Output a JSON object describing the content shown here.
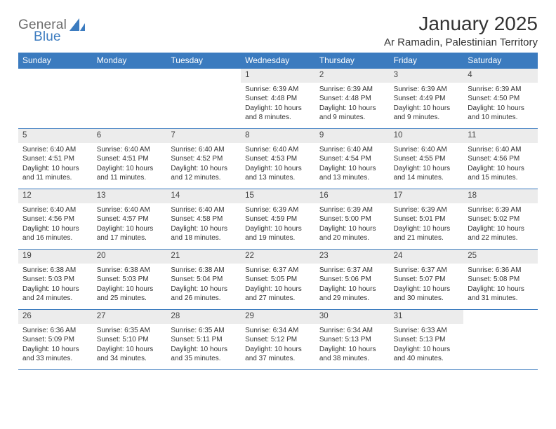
{
  "logo": {
    "top": "General",
    "bottom": "Blue",
    "shape_color": "#3b7bbf"
  },
  "title": "January 2025",
  "location": "Ar Ramadin, Palestinian Territory",
  "colors": {
    "header_bg": "#3b7bbf",
    "header_text": "#ffffff",
    "daynum_bg": "#ececec",
    "border": "#3b7bbf",
    "body_text": "#333333",
    "logo_gray": "#6b6b6b"
  },
  "daynames": [
    "Sunday",
    "Monday",
    "Tuesday",
    "Wednesday",
    "Thursday",
    "Friday",
    "Saturday"
  ],
  "weeks": [
    [
      null,
      null,
      null,
      {
        "n": "1",
        "sunrise": "6:39 AM",
        "sunset": "4:48 PM",
        "daylight": "10 hours and 8 minutes."
      },
      {
        "n": "2",
        "sunrise": "6:39 AM",
        "sunset": "4:48 PM",
        "daylight": "10 hours and 9 minutes."
      },
      {
        "n": "3",
        "sunrise": "6:39 AM",
        "sunset": "4:49 PM",
        "daylight": "10 hours and 9 minutes."
      },
      {
        "n": "4",
        "sunrise": "6:39 AM",
        "sunset": "4:50 PM",
        "daylight": "10 hours and 10 minutes."
      }
    ],
    [
      {
        "n": "5",
        "sunrise": "6:40 AM",
        "sunset": "4:51 PM",
        "daylight": "10 hours and 11 minutes."
      },
      {
        "n": "6",
        "sunrise": "6:40 AM",
        "sunset": "4:51 PM",
        "daylight": "10 hours and 11 minutes."
      },
      {
        "n": "7",
        "sunrise": "6:40 AM",
        "sunset": "4:52 PM",
        "daylight": "10 hours and 12 minutes."
      },
      {
        "n": "8",
        "sunrise": "6:40 AM",
        "sunset": "4:53 PM",
        "daylight": "10 hours and 13 minutes."
      },
      {
        "n": "9",
        "sunrise": "6:40 AM",
        "sunset": "4:54 PM",
        "daylight": "10 hours and 13 minutes."
      },
      {
        "n": "10",
        "sunrise": "6:40 AM",
        "sunset": "4:55 PM",
        "daylight": "10 hours and 14 minutes."
      },
      {
        "n": "11",
        "sunrise": "6:40 AM",
        "sunset": "4:56 PM",
        "daylight": "10 hours and 15 minutes."
      }
    ],
    [
      {
        "n": "12",
        "sunrise": "6:40 AM",
        "sunset": "4:56 PM",
        "daylight": "10 hours and 16 minutes."
      },
      {
        "n": "13",
        "sunrise": "6:40 AM",
        "sunset": "4:57 PM",
        "daylight": "10 hours and 17 minutes."
      },
      {
        "n": "14",
        "sunrise": "6:40 AM",
        "sunset": "4:58 PM",
        "daylight": "10 hours and 18 minutes."
      },
      {
        "n": "15",
        "sunrise": "6:39 AM",
        "sunset": "4:59 PM",
        "daylight": "10 hours and 19 minutes."
      },
      {
        "n": "16",
        "sunrise": "6:39 AM",
        "sunset": "5:00 PM",
        "daylight": "10 hours and 20 minutes."
      },
      {
        "n": "17",
        "sunrise": "6:39 AM",
        "sunset": "5:01 PM",
        "daylight": "10 hours and 21 minutes."
      },
      {
        "n": "18",
        "sunrise": "6:39 AM",
        "sunset": "5:02 PM",
        "daylight": "10 hours and 22 minutes."
      }
    ],
    [
      {
        "n": "19",
        "sunrise": "6:38 AM",
        "sunset": "5:03 PM",
        "daylight": "10 hours and 24 minutes."
      },
      {
        "n": "20",
        "sunrise": "6:38 AM",
        "sunset": "5:03 PM",
        "daylight": "10 hours and 25 minutes."
      },
      {
        "n": "21",
        "sunrise": "6:38 AM",
        "sunset": "5:04 PM",
        "daylight": "10 hours and 26 minutes."
      },
      {
        "n": "22",
        "sunrise": "6:37 AM",
        "sunset": "5:05 PM",
        "daylight": "10 hours and 27 minutes."
      },
      {
        "n": "23",
        "sunrise": "6:37 AM",
        "sunset": "5:06 PM",
        "daylight": "10 hours and 29 minutes."
      },
      {
        "n": "24",
        "sunrise": "6:37 AM",
        "sunset": "5:07 PM",
        "daylight": "10 hours and 30 minutes."
      },
      {
        "n": "25",
        "sunrise": "6:36 AM",
        "sunset": "5:08 PM",
        "daylight": "10 hours and 31 minutes."
      }
    ],
    [
      {
        "n": "26",
        "sunrise": "6:36 AM",
        "sunset": "5:09 PM",
        "daylight": "10 hours and 33 minutes."
      },
      {
        "n": "27",
        "sunrise": "6:35 AM",
        "sunset": "5:10 PM",
        "daylight": "10 hours and 34 minutes."
      },
      {
        "n": "28",
        "sunrise": "6:35 AM",
        "sunset": "5:11 PM",
        "daylight": "10 hours and 35 minutes."
      },
      {
        "n": "29",
        "sunrise": "6:34 AM",
        "sunset": "5:12 PM",
        "daylight": "10 hours and 37 minutes."
      },
      {
        "n": "30",
        "sunrise": "6:34 AM",
        "sunset": "5:13 PM",
        "daylight": "10 hours and 38 minutes."
      },
      {
        "n": "31",
        "sunrise": "6:33 AM",
        "sunset": "5:13 PM",
        "daylight": "10 hours and 40 minutes."
      },
      null
    ]
  ],
  "labels": {
    "sunrise_prefix": "Sunrise: ",
    "sunset_prefix": "Sunset: ",
    "daylight_prefix": "Daylight: "
  }
}
